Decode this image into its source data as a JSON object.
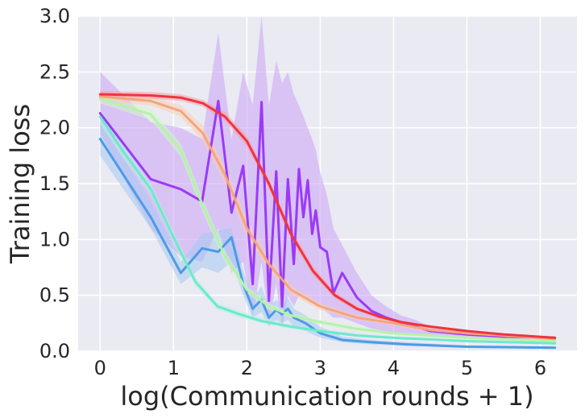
{
  "chart_data": {
    "type": "line",
    "title": "",
    "xlabel": "log(Communication rounds + 1)",
    "ylabel": "Training loss",
    "xlim": [
      -0.3,
      6.5
    ],
    "ylim": [
      0,
      3.0
    ],
    "xticks": [
      "0",
      "1",
      "2",
      "3",
      "4",
      "5",
      "6"
    ],
    "yticks": [
      "0.0",
      "0.5",
      "1.0",
      "1.5",
      "2.0",
      "2.5",
      "3.0"
    ],
    "grid": true,
    "legend": "none",
    "background": "#eaeaf2",
    "series": [
      {
        "color": "#9b3af7",
        "band_color": "#c9a3f5",
        "x": [
          0,
          0.69,
          1.1,
          1.39,
          1.61,
          1.79,
          1.95,
          2.08,
          2.2,
          2.3,
          2.4,
          2.48,
          2.56,
          2.64,
          2.71,
          2.77,
          2.83,
          2.89,
          2.94,
          3.0,
          3.09,
          3.18,
          3.3,
          3.5,
          3.7,
          3.9,
          4.1,
          4.3,
          4.5,
          5.0,
          5.5,
          6.2
        ],
        "y": [
          2.13,
          1.54,
          1.45,
          1.34,
          2.24,
          1.24,
          1.66,
          0.6,
          2.23,
          0.45,
          1.61,
          0.4,
          1.54,
          0.78,
          1.63,
          1.2,
          1.53,
          1.05,
          1.26,
          0.93,
          0.89,
          0.52,
          0.7,
          0.48,
          0.36,
          0.3,
          0.26,
          0.22,
          0.18,
          0.15,
          0.13,
          0.12
        ],
        "lower": [
          1.95,
          1.1,
          0.85,
          0.8,
          1.1,
          0.7,
          0.8,
          0.3,
          0.8,
          0.25,
          0.6,
          0.2,
          0.5,
          0.4,
          0.5,
          0.5,
          0.45,
          0.45,
          0.4,
          0.4,
          0.35,
          0.3,
          0.3,
          0.25,
          0.2,
          0.18,
          0.16,
          0.15,
          0.13,
          0.12,
          0.1,
          0.1
        ],
        "upper": [
          2.5,
          2.05,
          2.0,
          1.9,
          2.85,
          1.9,
          2.5,
          2.2,
          3.0,
          2.2,
          2.6,
          2.4,
          2.5,
          2.3,
          2.2,
          2.1,
          2.0,
          1.9,
          1.8,
          1.6,
          1.4,
          1.1,
          0.95,
          0.7,
          0.5,
          0.4,
          0.32,
          0.28,
          0.22,
          0.18,
          0.15,
          0.13
        ]
      },
      {
        "color": "#4c9be8",
        "band_color": "#a5c8f0",
        "x": [
          0,
          0.69,
          1.1,
          1.39,
          1.61,
          1.79,
          1.95,
          2.08,
          2.2,
          2.3,
          2.4,
          2.48,
          2.56,
          2.64,
          2.8,
          3.0,
          3.3,
          3.7,
          4.2,
          5.0,
          6.2
        ],
        "y": [
          1.9,
          1.2,
          0.7,
          0.92,
          0.89,
          1.02,
          0.6,
          0.38,
          0.46,
          0.3,
          0.37,
          0.33,
          0.38,
          0.3,
          0.25,
          0.16,
          0.1,
          0.08,
          0.06,
          0.04,
          0.03
        ],
        "lower": [
          1.75,
          1.1,
          0.6,
          0.75,
          0.7,
          0.8,
          0.5,
          0.3,
          0.35,
          0.22,
          0.28,
          0.25,
          0.28,
          0.22,
          0.18,
          0.12,
          0.08,
          0.06,
          0.05,
          0.03,
          0.02
        ],
        "upper": [
          2.05,
          1.35,
          0.8,
          1.05,
          1.08,
          1.1,
          0.72,
          0.48,
          0.58,
          0.4,
          0.46,
          0.42,
          0.48,
          0.38,
          0.32,
          0.22,
          0.13,
          0.1,
          0.08,
          0.05,
          0.04
        ]
      },
      {
        "color": "#6ee8cc",
        "band_color": "#b4f0e2",
        "x": [
          0,
          0.3,
          0.69,
          1.0,
          1.3,
          1.6,
          1.9,
          2.2,
          2.6,
          3.0,
          3.5,
          4.0,
          5.0,
          6.2
        ],
        "y": [
          2.1,
          1.8,
          1.45,
          1.02,
          0.62,
          0.4,
          0.33,
          0.27,
          0.22,
          0.18,
          0.14,
          0.12,
          0.09,
          0.07
        ],
        "lower": [
          2.03,
          1.74,
          1.4,
          0.97,
          0.58,
          0.37,
          0.3,
          0.25,
          0.2,
          0.16,
          0.13,
          0.11,
          0.08,
          0.06
        ],
        "upper": [
          2.17,
          1.86,
          1.5,
          1.07,
          0.66,
          0.43,
          0.36,
          0.3,
          0.24,
          0.2,
          0.16,
          0.13,
          0.1,
          0.08
        ]
      },
      {
        "color": "#b6f2a9",
        "band_color": "#d4f5cb",
        "x": [
          0,
          0.69,
          1.1,
          1.4,
          1.7,
          2.0,
          2.3,
          2.6,
          3.0,
          3.5,
          4.0,
          5.0,
          6.2
        ],
        "y": [
          2.26,
          2.12,
          1.8,
          1.3,
          0.85,
          0.55,
          0.4,
          0.32,
          0.26,
          0.2,
          0.16,
          0.12,
          0.09
        ],
        "lower": [
          2.22,
          2.07,
          1.74,
          1.24,
          0.8,
          0.52,
          0.37,
          0.3,
          0.24,
          0.18,
          0.15,
          0.11,
          0.08
        ],
        "upper": [
          2.3,
          2.17,
          1.86,
          1.36,
          0.9,
          0.58,
          0.43,
          0.34,
          0.28,
          0.22,
          0.17,
          0.13,
          0.1
        ]
      },
      {
        "color": "#f6a57c",
        "band_color": "#f9cdb3",
        "x": [
          0,
          0.69,
          1.1,
          1.4,
          1.7,
          2.0,
          2.3,
          2.6,
          3.0,
          3.5,
          4.0,
          4.5,
          5.0,
          6.2
        ],
        "y": [
          2.28,
          2.24,
          2.15,
          1.95,
          1.58,
          1.1,
          0.78,
          0.55,
          0.4,
          0.3,
          0.25,
          0.19,
          0.16,
          0.11
        ],
        "lower": [
          2.24,
          2.2,
          2.1,
          1.88,
          1.5,
          1.03,
          0.72,
          0.51,
          0.37,
          0.28,
          0.23,
          0.17,
          0.15,
          0.1
        ],
        "upper": [
          2.32,
          2.28,
          2.2,
          2.02,
          1.66,
          1.17,
          0.84,
          0.59,
          0.43,
          0.32,
          0.27,
          0.21,
          0.17,
          0.12
        ]
      },
      {
        "color": "#ef3340",
        "band_color": "#f5a0a6",
        "x": [
          0,
          0.69,
          1.1,
          1.4,
          1.7,
          2.0,
          2.3,
          2.6,
          2.9,
          3.2,
          3.5,
          3.8,
          4.1,
          4.5,
          5.0,
          5.5,
          6.2
        ],
        "y": [
          2.3,
          2.29,
          2.27,
          2.22,
          2.1,
          1.88,
          1.5,
          1.05,
          0.72,
          0.5,
          0.38,
          0.31,
          0.26,
          0.22,
          0.18,
          0.15,
          0.12
        ],
        "lower": [
          2.27,
          2.26,
          2.24,
          2.19,
          2.06,
          1.83,
          1.45,
          1.0,
          0.68,
          0.47,
          0.36,
          0.29,
          0.25,
          0.21,
          0.17,
          0.14,
          0.11
        ],
        "upper": [
          2.33,
          2.32,
          2.3,
          2.25,
          2.14,
          1.93,
          1.55,
          1.1,
          0.76,
          0.53,
          0.4,
          0.33,
          0.27,
          0.23,
          0.19,
          0.16,
          0.13
        ]
      }
    ]
  }
}
